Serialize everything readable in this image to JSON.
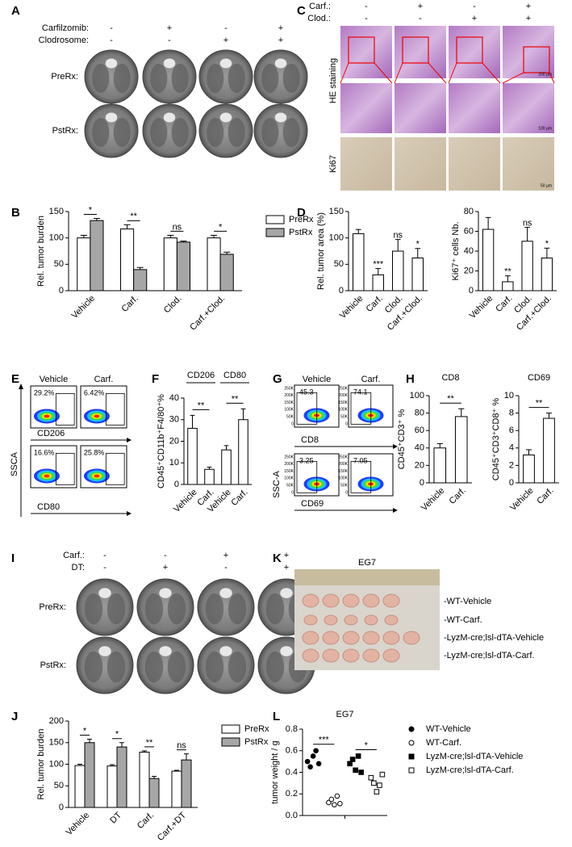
{
  "panel_letters": [
    "A",
    "B",
    "C",
    "D",
    "E",
    "F",
    "G",
    "H",
    "I",
    "J",
    "K",
    "L"
  ],
  "panel_a": {
    "conditions": [
      "Carfilzomib:",
      "Clodrosome:"
    ],
    "signs": [
      [
        "-",
        "+",
        "-",
        "+"
      ],
      [
        "-",
        "-",
        "+",
        "+"
      ]
    ],
    "rows": [
      "PreRx:",
      "PstRx:"
    ]
  },
  "panel_c": {
    "conditions": [
      "Carf.:",
      "Clod.:"
    ],
    "signs": [
      [
        "-",
        "+",
        "-",
        "+"
      ],
      [
        "-",
        "-",
        "+",
        "+"
      ]
    ],
    "rows": [
      "HE staining",
      "Ki67"
    ],
    "scale_bars": [
      "200 μm",
      "100 μm",
      "50 μm"
    ]
  },
  "panel_e": {
    "columns": [
      "Vehicle",
      "Carf."
    ],
    "gates": [
      [
        "29.2%",
        "6.42%"
      ],
      [
        "16.6%",
        "25.8%"
      ]
    ],
    "x_labels": [
      "CD206",
      "CD80"
    ],
    "y_label": "SSCA"
  },
  "panel_g": {
    "columns": [
      "Vehicle",
      "Carf."
    ],
    "gates": [
      [
        "45.3",
        "74.1"
      ],
      [
        "3.25",
        "7.05"
      ]
    ],
    "x_labels": [
      "CD8",
      "CD69"
    ],
    "y_label": "SSC-A",
    "y_ticks": [
      "250K",
      "200K",
      "150K",
      "100K",
      "50K",
      "0"
    ]
  },
  "panel_i": {
    "conditions": [
      "Carf.:",
      "DT:"
    ],
    "signs": [
      [
        "-",
        "-",
        "+",
        "+"
      ],
      [
        "-",
        "+",
        "-",
        "+"
      ]
    ],
    "rows": [
      "PreRx:",
      "PstRx:"
    ]
  },
  "panel_k": {
    "title": "EG7",
    "groups": [
      "-WT-Vehicle",
      "-WT-Carf.",
      "-LyzM-cre;lsl-dTA-Vehicle",
      "-LyzM-cre;lsl-dTA-Carf."
    ]
  },
  "chart_data": [
    {
      "type": "bar",
      "categories": [
        "Vehicle",
        "Carf.",
        "Clod.",
        "Carf.+Clod."
      ],
      "series": [
        {
          "name": "PreRx",
          "color": "#ffffff",
          "values": [
            100,
            117,
            100,
            100
          ],
          "errors": [
            5,
            8,
            5,
            5
          ]
        },
        {
          "name": "PstRx",
          "color": "#a6a6a6",
          "values": [
            133,
            40,
            92,
            69
          ],
          "errors": [
            4,
            4,
            2,
            4
          ]
        }
      ],
      "ylabel": "Rel. tumor burden",
      "ylim": [
        0,
        150
      ],
      "yticks": [
        0,
        50,
        100,
        150
      ],
      "significance": [
        "*",
        "**",
        "ns",
        "*"
      ],
      "legend": "right"
    },
    {
      "type": "bar",
      "categories": [
        "Vehicle",
        "Carf.",
        "Clod.",
        "Carf.+Clod."
      ],
      "values": [
        108,
        30,
        75,
        62
      ],
      "errors": [
        8,
        12,
        22,
        18
      ],
      "color": "#ffffff",
      "ylabel": "Rel. tumor area (%)",
      "ylim": [
        0,
        150
      ],
      "yticks": [
        0,
        50,
        100,
        150
      ],
      "significance": [
        null,
        "***",
        "ns",
        "*"
      ]
    },
    {
      "type": "bar",
      "categories": [
        "Vehicle",
        "Carf.",
        "Clod.",
        "Carf.+Clod."
      ],
      "values": [
        62,
        9,
        50,
        33
      ],
      "errors": [
        12,
        6,
        14,
        10
      ],
      "color": "#ffffff",
      "ylabel": "Ki67⁺ cells Nb.",
      "ylim": [
        0,
        80
      ],
      "yticks": [
        0,
        20,
        40,
        60,
        80
      ],
      "significance": [
        null,
        "**",
        "ns",
        "*"
      ]
    },
    {
      "type": "bar",
      "categories": [
        "Vehicle",
        "Carf.",
        "Vehicle",
        "Carf."
      ],
      "values": [
        26,
        7,
        16,
        30
      ],
      "errors": [
        6,
        1,
        2,
        5
      ],
      "color": "#ffffff",
      "groups": [
        "CD206",
        "CD80"
      ],
      "ylabel": "CD45⁺CD11b⁺F4/80⁺%",
      "ylim": [
        0,
        40
      ],
      "yticks": [
        0,
        10,
        20,
        30,
        40
      ],
      "significance": [
        "**",
        "**"
      ]
    },
    {
      "type": "bar",
      "title": "CD8",
      "categories": [
        "Vehicle",
        "Carf."
      ],
      "values": [
        40,
        76
      ],
      "errors": [
        5,
        9
      ],
      "color": "#ffffff",
      "ylabel": "CD45⁺CD3⁺ %",
      "ylim": [
        0,
        100
      ],
      "yticks": [
        0,
        20,
        40,
        60,
        80,
        100
      ],
      "significance": [
        "**"
      ]
    },
    {
      "type": "bar",
      "title": "CD69",
      "categories": [
        "Vehicle",
        "Carf."
      ],
      "values": [
        3.2,
        7.4
      ],
      "errors": [
        0.6,
        0.6
      ],
      "color": "#ffffff",
      "ylabel": "CD45⁺CD3⁺CD8⁺ %",
      "ylim": [
        0,
        10
      ],
      "yticks": [
        0,
        2,
        4,
        6,
        8,
        10
      ],
      "significance": [
        "**"
      ]
    },
    {
      "type": "bar",
      "categories": [
        "Vehicle",
        "DT",
        "Carf.",
        "Carf.+DT"
      ],
      "series": [
        {
          "name": "PreRx",
          "color": "#ffffff",
          "values": [
            97,
            96,
            128,
            84
          ],
          "errors": [
            3,
            3,
            3,
            2
          ]
        },
        {
          "name": "PstRx",
          "color": "#a6a6a6",
          "values": [
            150,
            140,
            67,
            110
          ],
          "errors": [
            8,
            10,
            5,
            14
          ]
        }
      ],
      "ylabel": "Rel. tumor burden",
      "ylim": [
        0,
        200
      ],
      "yticks": [
        0,
        50,
        100,
        150,
        200
      ],
      "significance": [
        "*",
        "*",
        "**",
        "ns"
      ],
      "legend": "right"
    },
    {
      "type": "scatter",
      "title": "EG7",
      "ylabel": "tumor weight / g",
      "ylim": [
        0,
        0.8
      ],
      "yticks": [
        {
          "value": 0,
          "label": "0.0"
        },
        0.2,
        0.4,
        0.6,
        0.8
      ],
      "series": [
        {
          "name": "WT-Vehicle",
          "color": "#000000",
          "marker": "circle",
          "values": [
            0.5,
            0.45,
            0.55,
            0.6,
            0.48
          ]
        },
        {
          "name": "WT-Carf.",
          "color": "#000000",
          "marker": "circle-open",
          "values": [
            0.12,
            0.15,
            0.1,
            0.18,
            0.11
          ]
        },
        {
          "name": "LyzM-cre;lsl-dTA-Vehicle",
          "color": "#000000",
          "marker": "square",
          "values": [
            0.48,
            0.52,
            0.42,
            0.55,
            0.4
          ]
        },
        {
          "name": "LyzM-cre;lsl-dTA-Carf.",
          "color": "#000000",
          "marker": "square-open",
          "values": [
            0.35,
            0.3,
            0.22,
            0.28,
            0.38
          ]
        }
      ],
      "significance": [
        "***",
        "*"
      ],
      "legend": "right"
    }
  ]
}
